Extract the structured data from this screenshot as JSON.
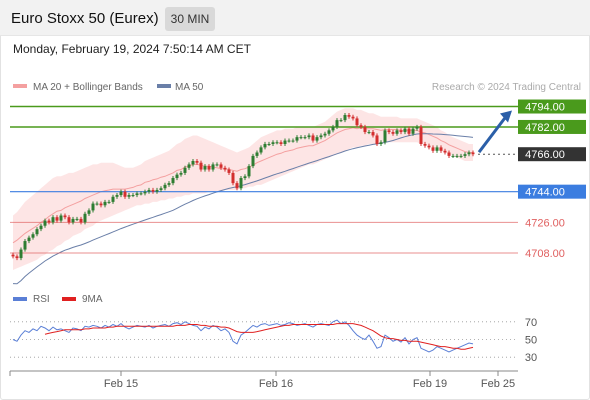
{
  "header": {
    "title": "Euro Stoxx 50 (Eurex)",
    "timeframe": "30 MIN",
    "datetime": "Monday, February 19, 2024 7:50:14 AM CET"
  },
  "legend": {
    "ma20_label": "MA 20 + Bollinger Bands",
    "ma50_label": "MA 50",
    "credit": "Research © 2024 Trading Central",
    "rsi_label": "RSI",
    "rsi_ma_label": "9MA"
  },
  "colors": {
    "up_candle": "#2e7d32",
    "down_candle": "#d32f2f",
    "ma20": "#f4a0a0",
    "bollinger_fill": "#fde0e0",
    "ma50": "#6a7fa8",
    "resistance": "#4a9a1c",
    "support": "#3b7de0",
    "target_support": "#e06060",
    "current": "#333333",
    "arrow": "#2b5fa8",
    "rsi": "#5a7fd6",
    "rsi_ma": "#e02020"
  },
  "chart_data": [
    {
      "type": "candlestick",
      "symbol": "Euro Stoxx 50 (Eurex)",
      "timeframe": "30 MIN",
      "x_ticks": [
        "Feb 15",
        "Feb 16",
        "Feb 19",
        "Feb 25"
      ],
      "ylim": [
        4698,
        4799
      ],
      "price_levels": [
        {
          "value": 4794.0,
          "label": "4794.00",
          "kind": "resistance"
        },
        {
          "value": 4782.0,
          "label": "4782.00",
          "kind": "resistance"
        },
        {
          "value": 4766.0,
          "label": "4766.00",
          "kind": "current"
        },
        {
          "value": 4744.0,
          "label": "4744.00",
          "kind": "pivot"
        },
        {
          "value": 4726.0,
          "label": "4726.00",
          "kind": "support"
        },
        {
          "value": 4708.0,
          "label": "4708.00",
          "kind": "support"
        }
      ],
      "close": [
        4706,
        4705,
        4710,
        4715,
        4717,
        4719,
        4722,
        4724,
        4727,
        4726,
        4729,
        4727,
        4730,
        4729,
        4726,
        4728,
        4728,
        4726,
        4731,
        4733,
        4737,
        4737,
        4736,
        4738,
        4738,
        4741,
        4742,
        4744,
        4741,
        4742,
        4742,
        4743,
        4743,
        4744,
        4745,
        4744,
        4745,
        4746,
        4748,
        4749,
        4752,
        4754,
        4755,
        4758,
        4760,
        4762,
        4761,
        4757,
        4759,
        4757,
        4760,
        4760,
        4758,
        4757,
        4755,
        4749,
        4746,
        4752,
        4753,
        4759,
        4765,
        4767,
        4770,
        4772,
        4772,
        4773,
        4773,
        4772,
        4774,
        4774,
        4774,
        4776,
        4776,
        4776,
        4777,
        4774,
        4776,
        4777,
        4778,
        4780,
        4782,
        4786,
        4786,
        4789,
        4788,
        4787,
        4783,
        4782,
        4779,
        4779,
        4777,
        4772,
        4773,
        4780,
        4779,
        4778,
        4780,
        4779,
        4781,
        4778,
        4781,
        4782,
        4772,
        4771,
        4770,
        4768,
        4770,
        4768,
        4767,
        4765,
        4765,
        4765,
        4765,
        4766,
        4767,
        4766
      ],
      "ma20_upper": [
        4730,
        4732,
        4735,
        4738,
        4740,
        4742,
        4744,
        4746,
        4748,
        4750,
        4752,
        4753,
        4753,
        4754,
        4755,
        4755,
        4756,
        4757,
        4758,
        4759,
        4760,
        4760,
        4761,
        4761,
        4761,
        4761,
        4760,
        4759,
        4758,
        4758,
        4758,
        4759,
        4760,
        4762,
        4763,
        4764,
        4765,
        4766,
        4767,
        4768,
        4770,
        4772,
        4773,
        4775,
        4776,
        4777,
        4777,
        4776,
        4775,
        4774,
        4773,
        4772,
        4771,
        4770,
        4769,
        4768,
        4767,
        4768,
        4769,
        4770,
        4772,
        4774,
        4776,
        4777,
        4778,
        4779,
        4780,
        4780,
        4781,
        4781,
        4781,
        4782,
        4782,
        4782,
        4782,
        4782,
        4783,
        4784,
        4785,
        4787,
        4789,
        4791,
        4792,
        4793,
        4793,
        4793,
        4792,
        4792,
        4791,
        4790,
        4790,
        4789,
        4788,
        4788,
        4788,
        4788,
        4788,
        4787,
        4787,
        4787,
        4787,
        4787,
        4786,
        4785,
        4784,
        4783,
        4782,
        4780,
        4779,
        4777,
        4776,
        4775,
        4774,
        4773,
        4772,
        4772
      ],
      "ma20_lower": [
        4698,
        4699,
        4700,
        4701,
        4702,
        4703,
        4704,
        4706,
        4707,
        4709,
        4710,
        4712,
        4713,
        4715,
        4716,
        4718,
        4719,
        4720,
        4722,
        4723,
        4724,
        4726,
        4727,
        4728,
        4729,
        4730,
        4731,
        4732,
        4733,
        4734,
        4735,
        4736,
        4736,
        4737,
        4737,
        4738,
        4738,
        4739,
        4739,
        4740,
        4740,
        4741,
        4741,
        4742,
        4742,
        4743,
        4743,
        4743,
        4743,
        4744,
        4744,
        4744,
        4744,
        4745,
        4745,
        4745,
        4745,
        4746,
        4746,
        4747,
        4747,
        4748,
        4748,
        4749,
        4750,
        4751,
        4752,
        4753,
        4754,
        4755,
        4756,
        4757,
        4758,
        4759,
        4760,
        4760,
        4761,
        4762,
        4763,
        4764,
        4765,
        4766,
        4767,
        4768,
        4769,
        4770,
        4770,
        4771,
        4771,
        4772,
        4772,
        4772,
        4772,
        4773,
        4773,
        4773,
        4773,
        4773,
        4773,
        4773,
        4773,
        4773,
        4772,
        4772,
        4771,
        4770,
        4769,
        4768,
        4767,
        4766,
        4765,
        4764,
        4763,
        4762,
        4762,
        4762
      ]
    },
    {
      "type": "line",
      "title": "RSI",
      "y_ticks": [
        70,
        50,
        30
      ],
      "ylim": [
        20,
        80
      ],
      "series": [
        {
          "name": "RSI",
          "values": [
            50,
            48,
            55,
            60,
            58,
            62,
            60,
            65,
            63,
            60,
            64,
            61,
            62,
            60,
            58,
            63,
            62,
            60,
            65,
            64,
            66,
            65,
            63,
            66,
            64,
            67,
            65,
            68,
            64,
            62,
            64,
            66,
            65,
            64,
            66,
            63,
            65,
            66,
            67,
            65,
            68,
            69,
            67,
            70,
            68,
            66,
            65,
            60,
            64,
            62,
            66,
            64,
            60,
            62,
            58,
            48,
            45,
            55,
            58,
            62,
            66,
            64,
            67,
            68,
            66,
            67,
            68,
            66,
            67,
            69,
            68,
            66,
            67,
            68,
            66,
            64,
            67,
            68,
            67,
            66,
            70,
            72,
            68,
            70,
            66,
            60,
            55,
            52,
            50,
            55,
            48,
            40,
            42,
            55,
            52,
            48,
            50,
            47,
            52,
            45,
            50,
            52,
            40,
            38,
            36,
            38,
            42,
            40,
            38,
            36,
            38,
            40,
            42,
            44,
            46,
            45
          ]
        },
        {
          "name": "9MA",
          "values": [
            null,
            null,
            null,
            null,
            null,
            null,
            null,
            null,
            56,
            57,
            58,
            59,
            60,
            61,
            61,
            61,
            61,
            61,
            62,
            62,
            63,
            63,
            63,
            63,
            64,
            64,
            65,
            65,
            65,
            65,
            65,
            65,
            65,
            65,
            65,
            65,
            65,
            65,
            65,
            65,
            65,
            66,
            66,
            66,
            67,
            67,
            67,
            66,
            66,
            65,
            65,
            65,
            64,
            64,
            63,
            61,
            59,
            58,
            58,
            58,
            58,
            59,
            60,
            61,
            62,
            63,
            64,
            65,
            66,
            66,
            67,
            67,
            67,
            67,
            67,
            67,
            67,
            67,
            67,
            67,
            67,
            68,
            68,
            68,
            68,
            68,
            67,
            66,
            64,
            62,
            60,
            57,
            54,
            52,
            51,
            51,
            50,
            49,
            49,
            48,
            48,
            48,
            47,
            46,
            45,
            44,
            43,
            42,
            42,
            41,
            40,
            40,
            39,
            39,
            40,
            41
          ]
        }
      ]
    }
  ]
}
